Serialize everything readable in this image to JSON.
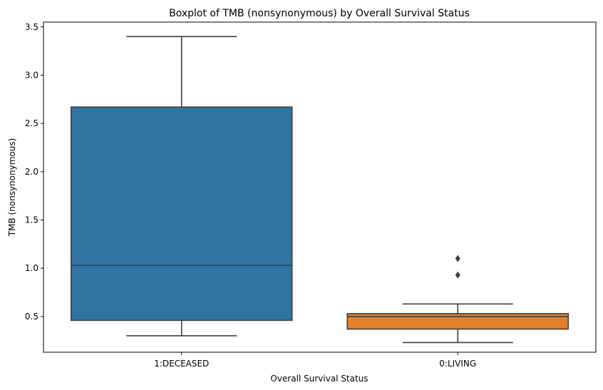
{
  "chart_data": {
    "type": "box",
    "title": "Boxplot of TMB (nonsynonymous) by Overall Survival Status",
    "xlabel": "Overall Survival Status",
    "ylabel": "TMB (nonsynonymous)",
    "ylim": [
      0.13,
      3.55
    ],
    "yticks": [
      0.5,
      1.0,
      1.5,
      2.0,
      2.5,
      3.0,
      3.5
    ],
    "ytick_labels": [
      "0.5",
      "1.0",
      "1.5",
      "2.0",
      "2.5",
      "3.0",
      "3.5"
    ],
    "grid": false,
    "categories": [
      "1:DECEASED",
      "0:LIVING"
    ],
    "boxes": [
      {
        "category": "1:DECEASED",
        "whisker_low": 0.3,
        "q1": 0.46,
        "median": 1.03,
        "q3": 2.67,
        "whisker_high": 3.4,
        "outliers": [],
        "color": "#3274a1"
      },
      {
        "category": "0:LIVING",
        "whisker_low": 0.23,
        "q1": 0.37,
        "median": 0.5,
        "q3": 0.53,
        "whisker_high": 0.63,
        "outliers": [
          0.93,
          1.1
        ],
        "color": "#e1812c"
      }
    ]
  }
}
